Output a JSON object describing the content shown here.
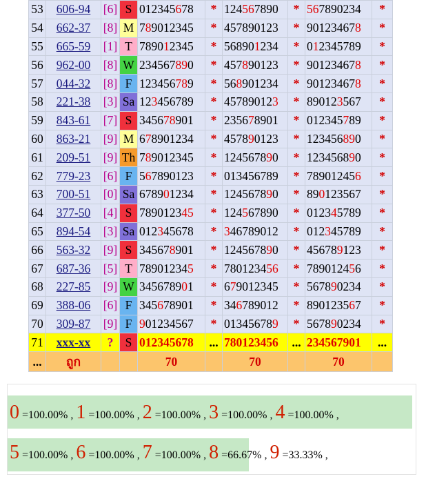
{
  "rows": [
    {
      "idx": "53",
      "code": "606-94",
      "br": "[6]",
      "day": "S",
      "day_bg": "#f0303c",
      "s1": "012345678",
      "s1_red": [
        6
      ],
      "s2": "124567890",
      "s2_red": [
        3,
        4
      ],
      "s3": "567890234",
      "s3_red": [
        0,
        1
      ]
    },
    {
      "idx": "54",
      "code": "662-37",
      "br": "[8]",
      "day": "M",
      "day_bg": "#ffff99",
      "s1": "789012345",
      "s1_red": [
        1
      ],
      "s2": "457890123",
      "s2_red": [],
      "s3": "901234678",
      "s3_red": [
        8
      ]
    },
    {
      "idx": "55",
      "code": "665-59",
      "br": "[1]",
      "day": "T",
      "day_bg": "#ffaec9",
      "s1": "789012345",
      "s1_red": [
        4
      ],
      "s2": "568901234",
      "s2_red": [
        5
      ],
      "s3": "012345789",
      "s3_red": [
        1
      ]
    },
    {
      "idx": "56",
      "code": "962-00",
      "br": "[8]",
      "day": "W",
      "day_bg": "#44d244",
      "s1": "234567890",
      "s1_red": [
        6,
        7
      ],
      "s2": "457890123",
      "s2_red": [
        3
      ],
      "s3": "901234678",
      "s3_red": [
        8
      ]
    },
    {
      "idx": "57",
      "code": "044-32",
      "br": "[8]",
      "day": "F",
      "day_bg": "#69b4f0",
      "s1": "123456789",
      "s1_red": [
        6,
        7
      ],
      "s2": "568901234",
      "s2_red": [
        2
      ],
      "s3": "901234678",
      "s3_red": [
        8
      ]
    },
    {
      "idx": "58",
      "code": "221-38",
      "br": "[3]",
      "day": "Sa",
      "day_bg": "#8070d8",
      "s1": "123456789",
      "s1_red": [
        2
      ],
      "s2": "457890123",
      "s2_red": [
        8
      ],
      "s3": "890123567",
      "s3_red": [
        5
      ]
    },
    {
      "idx": "59",
      "code": "843-61",
      "br": "[7]",
      "day": "S",
      "day_bg": "#f0303c",
      "s1": "345678901",
      "s1_red": [
        4,
        5
      ],
      "s2": "235678901",
      "s2_red": [
        4
      ],
      "s3": "012345789",
      "s3_red": [
        6
      ]
    },
    {
      "idx": "60",
      "code": "863-21",
      "br": "[9]",
      "day": "M",
      "day_bg": "#ffff99",
      "s1": "678901234",
      "s1_red": [
        1
      ],
      "s2": "457890123",
      "s2_red": [
        4
      ],
      "s3": "123456890",
      "s3_red": [
        6,
        7
      ]
    },
    {
      "idx": "61",
      "code": "209-51",
      "br": "[9]",
      "day": "Th",
      "day_bg": "#f59a2c",
      "s1": "789012345",
      "s1_red": [
        1
      ],
      "s2": "124567890",
      "s2_red": [
        7
      ],
      "s3": "123456890",
      "s3_red": [
        7
      ]
    },
    {
      "idx": "62",
      "code": "779-23",
      "br": "[6]",
      "day": "F",
      "day_bg": "#69b4f0",
      "s1": "567890123",
      "s1_red": [
        1
      ],
      "s2": "013456789",
      "s2_red": [],
      "s3": "789012456",
      "s3_red": [
        8
      ]
    },
    {
      "idx": "63",
      "code": "700-51",
      "br": "[0]",
      "day": "Sa",
      "day_bg": "#8070d8",
      "s1": "678901234",
      "s1_red": [
        4
      ],
      "s2": "124567890",
      "s2_red": [
        7
      ],
      "s3": "890123567",
      "s3_red": [
        2
      ]
    },
    {
      "idx": "64",
      "code": "377-50",
      "br": "[4]",
      "day": "S",
      "day_bg": "#f0303c",
      "s1": "789012345",
      "s1_red": [
        7,
        8
      ],
      "s2": "124567890",
      "s2_red": [
        3
      ],
      "s3": "012345789",
      "s3_red": [
        4
      ]
    },
    {
      "idx": "65",
      "code": "894-54",
      "br": "[3]",
      "day": "Sa",
      "day_bg": "#8070d8",
      "s1": "012345678",
      "s1_red": [
        3
      ],
      "s2": "346789012",
      "s2_red": [
        0
      ],
      "s3": "012345789",
      "s3_red": [
        3
      ]
    },
    {
      "idx": "66",
      "code": "563-32",
      "br": "[9]",
      "day": "S",
      "day_bg": "#f0303c",
      "s1": "345678901",
      "s1_red": [
        5
      ],
      "s2": "124567890",
      "s2_red": [
        7
      ],
      "s3": "456789123",
      "s3_red": [
        5
      ]
    },
    {
      "idx": "67",
      "code": "687-36",
      "br": "[5]",
      "day": "T",
      "day_bg": "#ffaec9",
      "s1": "789012345",
      "s1_red": [
        8
      ],
      "s2": "780123456",
      "s2_red": [
        7,
        8
      ],
      "s3": "789012456",
      "s3_red": [
        7
      ]
    },
    {
      "idx": "68",
      "code": "227-85",
      "br": "[9]",
      "day": "W",
      "day_bg": "#44d244",
      "s1": "345678901",
      "s1_red": [
        7
      ],
      "s2": "679012345",
      "s2_red": [
        1
      ],
      "s3": "567890234",
      "s3_red": [
        4
      ]
    },
    {
      "idx": "69",
      "code": "388-06",
      "br": "[6]",
      "day": "F",
      "day_bg": "#69b4f0",
      "s1": "345678901",
      "s1_red": [
        3
      ],
      "s2": "346789012",
      "s2_red": [
        2
      ],
      "s3": "890123567",
      "s3_red": [
        7
      ]
    },
    {
      "idx": "70",
      "code": "309-87",
      "br": "[9]",
      "day": "F",
      "day_bg": "#69b4f0",
      "s1": "901234567",
      "s1_red": [
        0
      ],
      "s2": "013456789",
      "s2_red": [
        8
      ],
      "s3": "567890234",
      "s3_red": [
        4
      ]
    }
  ],
  "highlight_row": {
    "idx": "71",
    "code": "xxx-xx",
    "br": "?",
    "day": "S",
    "day_bg": "#f0303c",
    "s1": "012345678",
    "sep": "...",
    "s2": "780123456",
    "s3": "234567901",
    "end": "..."
  },
  "footer_row": {
    "c1": "...",
    "c2": "ถูก",
    "s1": "70",
    "s2": "70",
    "s3": "70"
  },
  "star": "*",
  "stats_line1": [
    {
      "digit": "0",
      "text": "=100.00%"
    },
    {
      "digit": "1",
      "text": "=100.00%"
    },
    {
      "digit": "2",
      "text": "=100.00%"
    },
    {
      "digit": "3",
      "text": "=100.00%"
    },
    {
      "digit": "4",
      "text": "=100.00%"
    }
  ],
  "stats_line2": [
    {
      "digit": "5",
      "text": "=100.00%"
    },
    {
      "digit": "6",
      "text": "=100.00%"
    },
    {
      "digit": "7",
      "text": "=100.00%"
    },
    {
      "digit": "8",
      "text": "=66.67%"
    },
    {
      "digit": "9",
      "text": "=33.33%"
    }
  ],
  "stats_sep": " , ",
  "colors": {
    "row_bg": "#dfe4f5",
    "highlight": "#ffff00",
    "footer": "#fcc56c",
    "red": "#e00000",
    "stat_band": "#c6e8c6"
  }
}
